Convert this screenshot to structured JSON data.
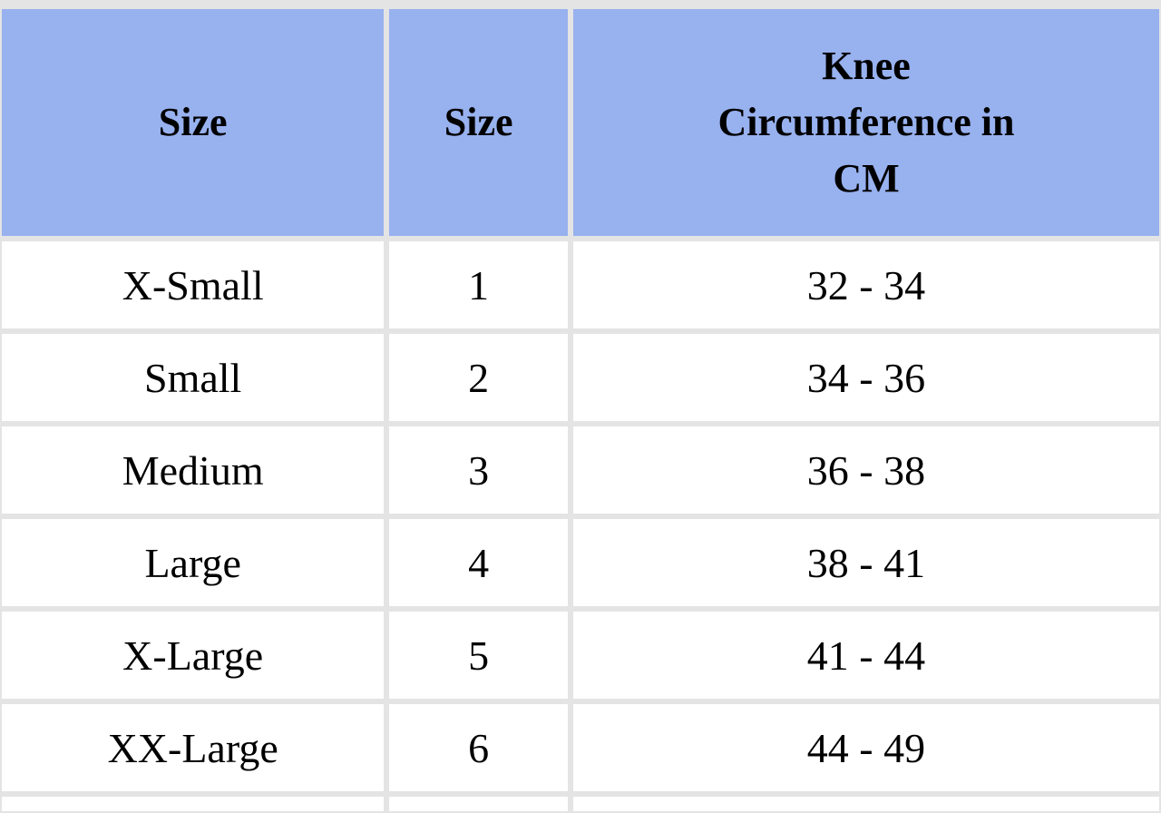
{
  "table": {
    "headers": [
      "Size",
      "Size",
      "Knee Circumference in CM"
    ],
    "rows": [
      [
        "X-Small",
        "1",
        "32 - 34"
      ],
      [
        "Small",
        "2",
        "34 - 36"
      ],
      [
        "Medium",
        "3",
        "36 - 38"
      ],
      [
        "Large",
        "4",
        "38 - 41"
      ],
      [
        "X-Large",
        "5",
        "41 - 44"
      ],
      [
        "XX-Large",
        "6",
        "44 - 49"
      ]
    ]
  },
  "colors": {
    "header_bg": "#98b1ef",
    "grid_lines": "#e4e4e4",
    "cell_bg": "#ffffff"
  }
}
